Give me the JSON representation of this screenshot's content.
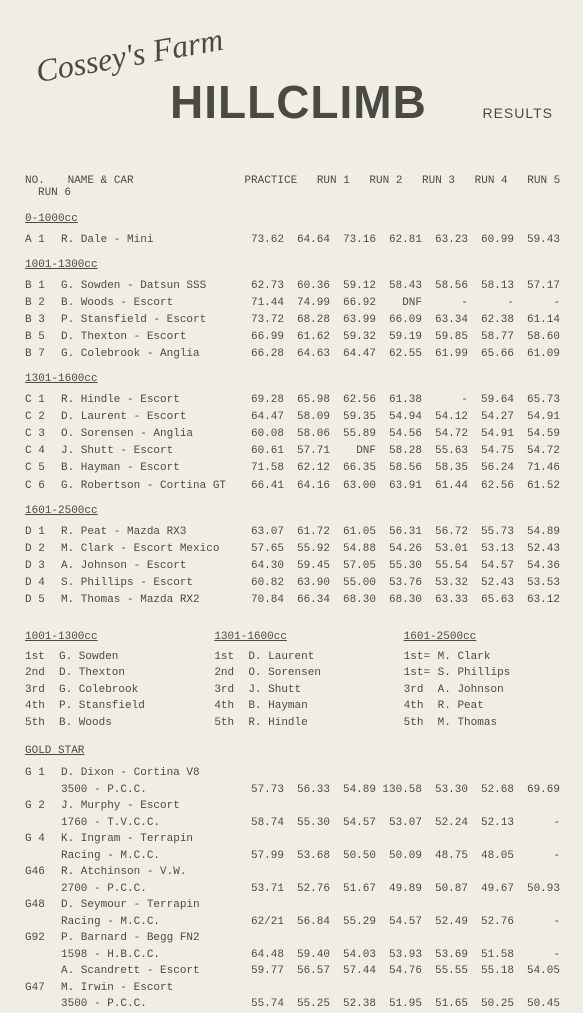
{
  "header": {
    "cosseys": "Cossey's Farm",
    "hillclimb": "HILLCLIMB",
    "results": "RESULTS"
  },
  "columns": {
    "no": "NO.",
    "name": "NAME & CAR",
    "practice": "PRACTICE",
    "run1": "RUN 1",
    "run2": "RUN 2",
    "run3": "RUN 3",
    "run4": "RUN 4",
    "run5": "RUN 5",
    "run6": "RUN 6"
  },
  "classes": [
    {
      "title": "0-1000cc",
      "rows": [
        {
          "no": "A 1",
          "name": "R. Dale - Mini",
          "v": [
            "73.62",
            "64.64",
            "73.16",
            "62.81",
            "63.23",
            "60.99",
            "59.43"
          ]
        }
      ]
    },
    {
      "title": "1001-1300cc",
      "rows": [
        {
          "no": "B 1",
          "name": "G. Sowden - Datsun SSS",
          "v": [
            "62.73",
            "60.36",
            "59.12",
            "58.43",
            "58.56",
            "58.13",
            "57.17"
          ]
        },
        {
          "no": "B 2",
          "name": "B. Woods - Escort",
          "v": [
            "71.44",
            "74.99",
            "66.92",
            "DNF",
            "-",
            "-",
            "-"
          ]
        },
        {
          "no": "B 3",
          "name": "P. Stansfield - Escort",
          "v": [
            "73.72",
            "68.28",
            "63.99",
            "66.09",
            "63.34",
            "62.38",
            "61.14"
          ]
        },
        {
          "no": "B 5",
          "name": "D. Thexton - Escort",
          "v": [
            "66.99",
            "61.62",
            "59.32",
            "59.19",
            "59.85",
            "58.77",
            "58.60"
          ]
        },
        {
          "no": "B 7",
          "name": "G. Colebrook - Anglia",
          "v": [
            "66.28",
            "64.63",
            "64.47",
            "62.55",
            "61.99",
            "65.66",
            "61.09"
          ]
        }
      ]
    },
    {
      "title": "1301-1600cc",
      "rows": [
        {
          "no": "C 1",
          "name": "R. Hindle - Escort",
          "v": [
            "69.28",
            "65.98",
            "62.56",
            "61.38",
            "-",
            "59.64",
            "65.73"
          ]
        },
        {
          "no": "C 2",
          "name": "D. Laurent - Escort",
          "v": [
            "64.47",
            "58.09",
            "59.35",
            "54.94",
            "54.12",
            "54.27",
            "54.91"
          ]
        },
        {
          "no": "C 3",
          "name": "O. Sorensen - Anglia",
          "v": [
            "60.08",
            "58.06",
            "55.89",
            "54.56",
            "54.72",
            "54.91",
            "54.59"
          ]
        },
        {
          "no": "C 4",
          "name": "J. Shutt - Escort",
          "v": [
            "60.61",
            "57.71",
            "DNF",
            "58.28",
            "55.63",
            "54.75",
            "54.72"
          ]
        },
        {
          "no": "C 5",
          "name": "B. Hayman - Escort",
          "v": [
            "71.58",
            "62.12",
            "66.35",
            "58.56",
            "58.35",
            "56.24",
            "71.46"
          ]
        },
        {
          "no": "C 6",
          "name": "G. Robertson - Cortina GT",
          "v": [
            "66.41",
            "64.16",
            "63.00",
            "63.91",
            "61.44",
            "62.56",
            "61.52"
          ]
        }
      ]
    },
    {
      "title": "1601-2500cc",
      "rows": [
        {
          "no": "D 1",
          "name": "R. Peat - Mazda RX3",
          "v": [
            "63.07",
            "61.72",
            "61.05",
            "56.31",
            "56.72",
            "55.73",
            "54.89"
          ]
        },
        {
          "no": "D 2",
          "name": "M. Clark - Escort Mexico",
          "v": [
            "57.65",
            "55.92",
            "54.88",
            "54.26",
            "53.01",
            "53.13",
            "52.43"
          ]
        },
        {
          "no": "D 3",
          "name": "A. Johnson - Escort",
          "v": [
            "64.30",
            "59.45",
            "57.05",
            "55.30",
            "55.54",
            "54.57",
            "54.36"
          ]
        },
        {
          "no": "D 4",
          "name": "S. Phillips - Escort",
          "v": [
            "60.82",
            "63.90",
            "55.00",
            "53.76",
            "53.32",
            "52.43",
            "53.53"
          ]
        },
        {
          "no": "D 5",
          "name": "M. Thomas - Mazda RX2",
          "v": [
            "70.84",
            "66.34",
            "68.30",
            "68.30",
            "63.33",
            "65.63",
            "63.12"
          ]
        }
      ]
    }
  ],
  "standings": [
    {
      "title": "1001-1300cc",
      "rows": [
        {
          "pos": "1st",
          "name": "G. Sowden"
        },
        {
          "pos": "2nd",
          "name": "D. Thexton"
        },
        {
          "pos": "3rd",
          "name": "G. Colebrook"
        },
        {
          "pos": "4th",
          "name": "P. Stansfield"
        },
        {
          "pos": "5th",
          "name": "B. Woods"
        }
      ]
    },
    {
      "title": "1301-1600cc",
      "rows": [
        {
          "pos": "1st",
          "name": "D. Laurent"
        },
        {
          "pos": "2nd",
          "name": "O. Sorensen"
        },
        {
          "pos": "3rd",
          "name": "J. Shutt"
        },
        {
          "pos": "4th",
          "name": "B. Hayman"
        },
        {
          "pos": "5th",
          "name": "R. Hindle"
        }
      ]
    },
    {
      "title": "1601-2500cc",
      "rows": [
        {
          "pos": "1st=",
          "name": "M. Clark"
        },
        {
          "pos": "1st=",
          "name": "S. Phillips"
        },
        {
          "pos": "3rd",
          "name": "A. Johnson"
        },
        {
          "pos": "4th",
          "name": "R. Peat"
        },
        {
          "pos": "5th",
          "name": "M. Thomas"
        }
      ]
    }
  ],
  "goldstar": {
    "title": "GOLD STAR",
    "rows": [
      {
        "no": "G 1",
        "name": "D. Dixon - Cortina V8",
        "sub": "3500 - P.C.C.",
        "v": [
          "57.73",
          "56.33",
          "54.89",
          "130.58",
          "53.30",
          "52.68",
          "69.69"
        ]
      },
      {
        "no": "G 2",
        "name": "J. Murphy - Escort",
        "sub": "1760 - T.V.C.C.",
        "v": [
          "58.74",
          "55.30",
          "54.57",
          "53.07",
          "52.24",
          "52.13",
          "-"
        ]
      },
      {
        "no": "G 4",
        "name": "K. Ingram - Terrapin",
        "sub": "Racing - M.C.C.",
        "v": [
          "57.99",
          "53.68",
          "50.50",
          "50.09",
          "48.75",
          "48.05",
          "-"
        ]
      },
      {
        "no": "G46",
        "name": "R. Atchinson - V.W.",
        "sub": "2700 - P.C.C.",
        "v": [
          "53.71",
          "52.76",
          "51.67",
          "49.89",
          "50.87",
          "49.67",
          "50.93"
        ]
      },
      {
        "no": "G48",
        "name": "D. Seymour - Terrapin",
        "sub": "Racing - M.C.C.",
        "v": [
          "62/21",
          "56.84",
          "55.29",
          "54.57",
          "52.49",
          "52.76",
          "-"
        ]
      },
      {
        "no": "G92",
        "name": "P. Barnard - Begg FN2",
        "sub": "1598 - H.B.C.C.",
        "v": [
          "64.48",
          "59.40",
          "54.03",
          "53.93",
          "53.69",
          "51.58",
          "-"
        ]
      },
      {
        "no": "",
        "name": "A. Scandrett - Escort",
        "sub": "",
        "v": [
          "59.77",
          "56.57",
          "57.44",
          "54.76",
          "55.55",
          "55.18",
          "54.05"
        ]
      },
      {
        "no": "G47",
        "name": "M. Irwin - Escort",
        "sub": "3500 - P.C.C.",
        "v": [
          "55.74",
          "55.25",
          "52.38",
          "51.95",
          "51.65",
          "50.25",
          "50.45"
        ]
      }
    ]
  }
}
